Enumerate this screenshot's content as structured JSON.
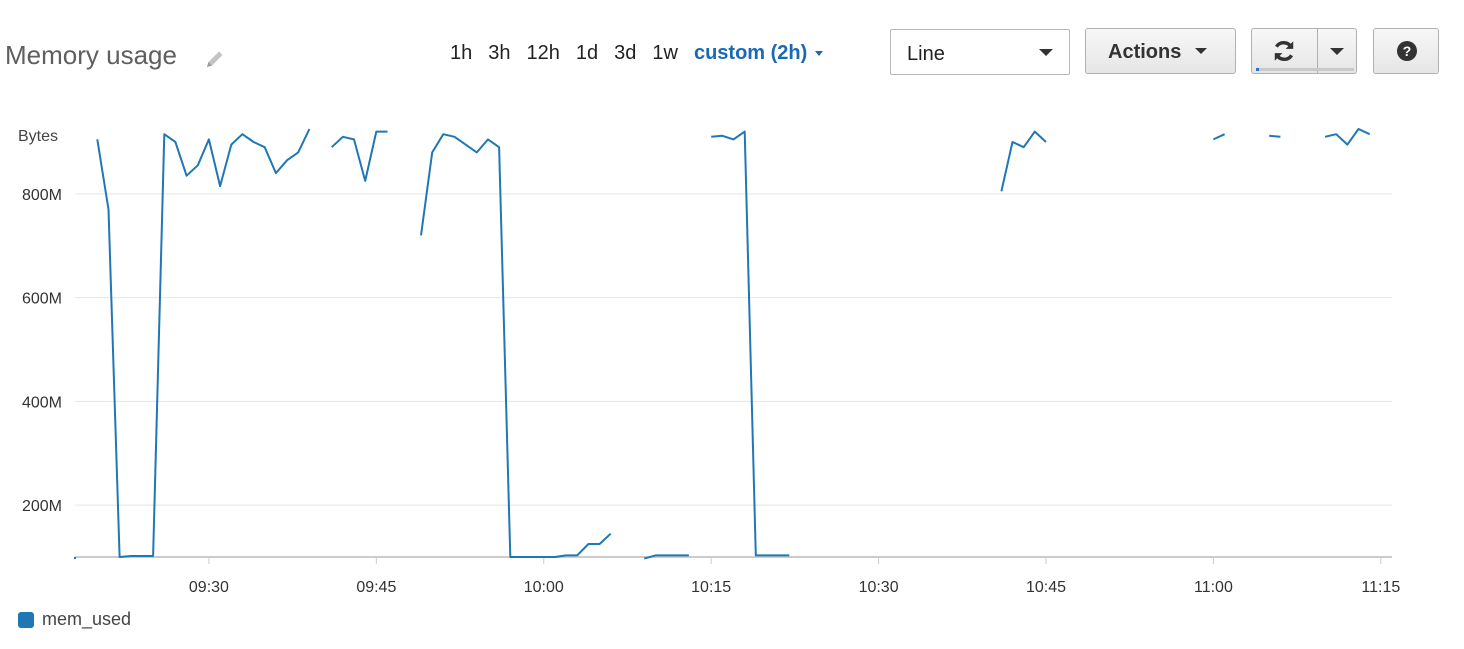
{
  "header": {
    "title": "Memory usage",
    "ranges": [
      "1h",
      "3h",
      "12h",
      "1d",
      "3d",
      "1w"
    ],
    "custom_range": "custom (2h)",
    "view_select": "Line",
    "actions_label": "Actions",
    "icons": {
      "edit": "pencil-icon",
      "refresh": "refresh-icon",
      "dropdown": "chevron-down-icon",
      "help": "help-icon"
    },
    "help_glyph": "?",
    "refresh_progress": 0.03
  },
  "colors": {
    "accent": "#1b69b4",
    "series": "#1f77b4",
    "grid": "#e5e5e5",
    "axis": "#cccccc"
  },
  "chart_data": {
    "type": "line",
    "ylabel": "Bytes",
    "xlabel": "",
    "ylim": [
      100,
      900
    ],
    "yticks": [
      200,
      400,
      600,
      800
    ],
    "ytick_labels": [
      "200M",
      "400M",
      "600M",
      "800M"
    ],
    "xlim": [
      "09:18",
      "11:16"
    ],
    "xticks": [
      "09:30",
      "09:45",
      "10:00",
      "10:15",
      "10:30",
      "10:45",
      "11:00",
      "11:15"
    ],
    "y_unit": "MB",
    "grid": true,
    "legend": "bottom-left",
    "series": [
      {
        "name": "mem_used",
        "color": "#1f77b4",
        "segments": [
          [
            [
              "09:18",
              100
            ],
            [
              "09:18",
              96
            ]
          ],
          [
            [
              "09:20",
              905
            ],
            [
              "09:21",
              770
            ],
            [
              "09:22",
              100
            ],
            [
              "09:23",
              102
            ],
            [
              "09:24",
              102
            ],
            [
              "09:25",
              102
            ],
            [
              "09:26",
              915
            ],
            [
              "09:27",
              900
            ],
            [
              "09:28",
              835
            ],
            [
              "09:29",
              855
            ],
            [
              "09:30",
              905
            ],
            [
              "09:31",
              815
            ],
            [
              "09:32",
              895
            ],
            [
              "09:33",
              915
            ],
            [
              "09:34",
              900
            ],
            [
              "09:35",
              890
            ],
            [
              "09:36",
              840
            ],
            [
              "09:37",
              865
            ],
            [
              "09:38",
              880
            ],
            [
              "09:39",
              925
            ]
          ],
          [
            [
              "09:41",
              890
            ],
            [
              "09:42",
              910
            ],
            [
              "09:43",
              905
            ],
            [
              "09:44",
              825
            ],
            [
              "09:45",
              920
            ],
            [
              "09:46",
              920
            ]
          ],
          [
            [
              "09:49",
              720
            ],
            [
              "09:50",
              880
            ],
            [
              "09:51",
              915
            ],
            [
              "09:52",
              910
            ],
            [
              "09:53",
              895
            ],
            [
              "09:54",
              880
            ],
            [
              "09:55",
              905
            ],
            [
              "09:56",
              890
            ],
            [
              "09:57",
              100
            ],
            [
              "09:58",
              100
            ],
            [
              "09:59",
              100
            ],
            [
              "10:00",
              100
            ],
            [
              "10:01",
              100
            ],
            [
              "10:02",
              103
            ],
            [
              "10:03",
              103
            ],
            [
              "10:04",
              125
            ],
            [
              "10:05",
              125
            ],
            [
              "10:06",
              145
            ]
          ],
          [
            [
              "10:09",
              97
            ],
            [
              "10:10",
              103
            ],
            [
              "10:11",
              103
            ],
            [
              "10:12",
              103
            ],
            [
              "10:13",
              103
            ]
          ],
          [
            [
              "10:15",
              910
            ],
            [
              "10:16",
              912
            ],
            [
              "10:17",
              905
            ],
            [
              "10:18",
              920
            ],
            [
              "10:19",
              103
            ],
            [
              "10:20",
              103
            ],
            [
              "10:21",
              103
            ],
            [
              "10:22",
              103
            ]
          ],
          [
            [
              "10:41",
              805
            ],
            [
              "10:42",
              900
            ],
            [
              "10:43",
              890
            ],
            [
              "10:44",
              920
            ],
            [
              "10:45",
              900
            ]
          ],
          [
            [
              "11:00",
              905
            ],
            [
              "11:01",
              915
            ]
          ],
          [
            [
              "11:05",
              912
            ],
            [
              "11:06",
              910
            ]
          ],
          [
            [
              "11:10",
              910
            ],
            [
              "11:11",
              915
            ],
            [
              "11:12",
              895
            ],
            [
              "11:13",
              925
            ],
            [
              "11:14",
              915
            ]
          ]
        ]
      }
    ]
  },
  "legend": {
    "items": [
      {
        "label": "mem_used",
        "color": "#1f77b4"
      }
    ]
  }
}
